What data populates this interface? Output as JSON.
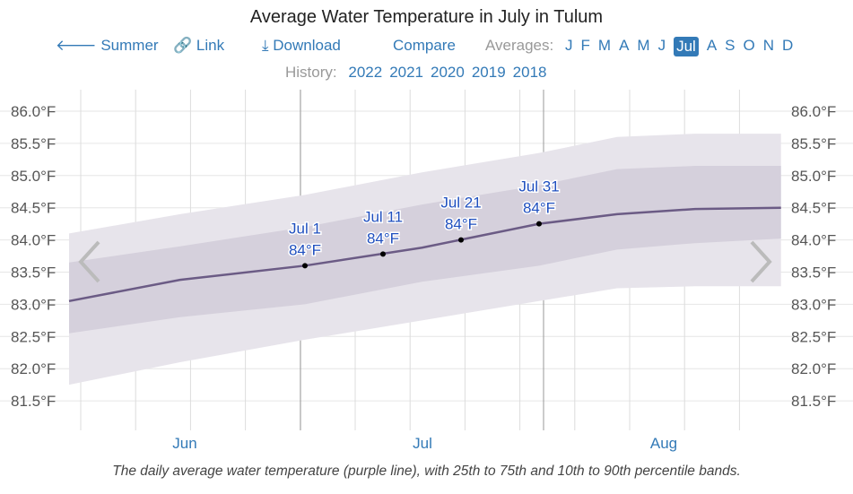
{
  "header": {
    "title": "Average Water Temperature in July in Tulum",
    "summer": "Summer",
    "link": "Link",
    "download": "Download",
    "compare": "Compare",
    "averages_label": "Averages:",
    "months": [
      "J",
      "F",
      "M",
      "A",
      "M",
      "J",
      "Jul",
      "A",
      "S",
      "O",
      "N",
      "D"
    ],
    "selected_month": "Jul",
    "history_label": "History:",
    "years": [
      "2022",
      "2021",
      "2020",
      "2019",
      "2018"
    ],
    "accent": "#337ab7"
  },
  "chart_data": {
    "type": "area",
    "title": "Average Water Temperature in July in Tulum",
    "y_ticks": [
      "86.0°F",
      "85.5°F",
      "85.0°F",
      "84.5°F",
      "84.0°F",
      "83.5°F",
      "83.0°F",
      "82.5°F",
      "82.0°F",
      "81.5°F"
    ],
    "ylim": [
      81.0,
      86.2
    ],
    "grid": true,
    "x_labels": [
      "Jun",
      "Jul",
      "Aug"
    ],
    "x": [
      "May 31",
      "Jun 15",
      "Jul 1",
      "Jul 16",
      "Jul 31",
      "Aug 10",
      "Aug 20",
      "Aug 31"
    ],
    "mean": [
      83.05,
      83.38,
      83.6,
      83.88,
      84.25,
      84.4,
      84.48,
      84.5
    ],
    "p25": [
      82.55,
      82.8,
      83.0,
      83.35,
      83.6,
      83.85,
      83.95,
      84.02
    ],
    "p75": [
      83.65,
      83.9,
      84.2,
      84.55,
      84.85,
      85.1,
      85.15,
      85.15
    ],
    "p10": [
      81.75,
      82.1,
      82.45,
      82.75,
      83.05,
      83.25,
      83.28,
      83.28
    ],
    "p90": [
      84.1,
      84.4,
      84.7,
      85.05,
      85.35,
      85.6,
      85.65,
      85.65
    ],
    "annotations": [
      {
        "date": "Jul 1",
        "label": "Jul 1",
        "value": "84°F",
        "y": 83.6
      },
      {
        "date": "Jul 11",
        "label": "Jul 11",
        "value": "84°F",
        "y": 83.78
      },
      {
        "date": "Jul 21",
        "label": "Jul 21",
        "value": "84°F",
        "y": 84.0
      },
      {
        "date": "Jul 31",
        "label": "Jul 31",
        "value": "84°F",
        "y": 84.25
      }
    ],
    "colors": {
      "line": "#6b5b85",
      "band_inner": "#d5d0dc",
      "band_outer": "#e7e4eb",
      "label": "#1f4fbf"
    }
  },
  "caption": "The daily average water temperature (purple line), with 25th to 75th and 10th to 90th percentile bands."
}
